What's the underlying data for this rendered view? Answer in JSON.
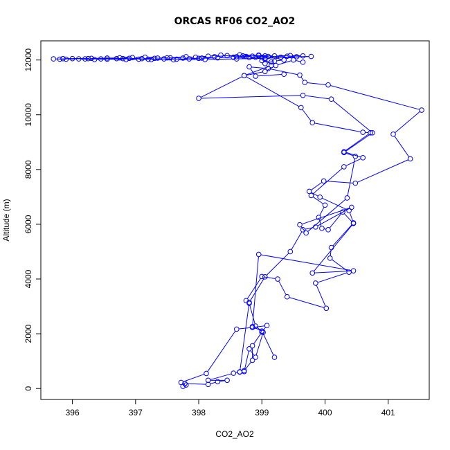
{
  "chart_data": {
    "type": "line",
    "title": "ORCAS RF06 CO2_AO2",
    "xlabel": "CO2_AO2",
    "ylabel": "Altitude (m)",
    "xlim": [
      395.5,
      401.65
    ],
    "ylim": [
      -400,
      12700
    ],
    "x_ticks": [
      396,
      397,
      398,
      399,
      400,
      401
    ],
    "y_ticks": [
      0,
      2000,
      4000,
      6000,
      8000,
      10000,
      12000
    ],
    "grid": false,
    "legend": "none",
    "series": [
      {
        "color": "#0000ff",
        "marker": "open-circle",
        "points": [
          [
            397.75,
            80
          ],
          [
            397.78,
            180
          ],
          [
            398.15,
            150
          ],
          [
            398.3,
            250
          ],
          [
            398.45,
            300
          ],
          [
            398.15,
            300
          ],
          [
            398.55,
            560
          ],
          [
            398.65,
            610
          ],
          [
            398.72,
            620
          ],
          [
            398.8,
            1450
          ],
          [
            398.9,
            1140
          ],
          [
            399.02,
            2050
          ],
          [
            398.9,
            2280
          ],
          [
            398.8,
            3110
          ],
          [
            398.75,
            3210
          ],
          [
            399.0,
            4090
          ],
          [
            399.25,
            4000
          ],
          [
            399.4,
            3350
          ],
          [
            400.02,
            2930
          ],
          [
            399.85,
            3850
          ],
          [
            400.38,
            4250
          ],
          [
            400.08,
            4760
          ],
          [
            400.1,
            5150
          ],
          [
            400.45,
            6050
          ],
          [
            400.38,
            6500
          ],
          [
            399.92,
            6990
          ],
          [
            399.75,
            7200
          ],
          [
            399.98,
            7580
          ],
          [
            400.48,
            7500
          ],
          [
            401.35,
            8390
          ],
          [
            401.08,
            9290
          ],
          [
            401.53,
            10170
          ],
          [
            400.05,
            11090
          ],
          [
            399.68,
            11180
          ],
          [
            399.6,
            11450
          ],
          [
            399.1,
            11690
          ],
          [
            398.8,
            11750
          ],
          [
            398.9,
            11410
          ],
          [
            399.35,
            11480
          ]
        ]
      },
      {
        "color": "#0000ff",
        "marker": "open-circle",
        "points": [
          [
            397.8,
            130
          ],
          [
            397.72,
            220
          ],
          [
            398.12,
            550
          ],
          [
            398.6,
            2170
          ],
          [
            398.85,
            2230
          ],
          [
            399.08,
            2300
          ],
          [
            399.0,
            2060
          ],
          [
            398.85,
            1560
          ],
          [
            398.85,
            1030
          ],
          [
            398.72,
            650
          ],
          [
            398.65,
            600
          ],
          [
            398.8,
            3150
          ],
          [
            399.05,
            4080
          ],
          [
            399.45,
            5000
          ],
          [
            399.65,
            5800
          ],
          [
            399.85,
            5900
          ],
          [
            400.42,
            6620
          ],
          [
            399.6,
            5980
          ],
          [
            399.7,
            5680
          ],
          [
            400.35,
            6960
          ],
          [
            400.48,
            8480
          ],
          [
            400.3,
            8620
          ],
          [
            400.75,
            9340
          ],
          [
            400.1,
            10570
          ],
          [
            399.65,
            10710
          ],
          [
            398.0,
            10600
          ],
          [
            398.72,
            11430
          ],
          [
            399.05,
            11580
          ],
          [
            399.22,
            11800
          ],
          [
            399.5,
            12000
          ],
          [
            399.65,
            11920
          ]
        ]
      },
      {
        "color": "#0000ff",
        "marker": "open-circle",
        "points": [
          [
            399.2,
            1140
          ],
          [
            399.0,
            2100
          ],
          [
            398.85,
            2260
          ],
          [
            398.95,
            4900
          ],
          [
            400.45,
            4300
          ],
          [
            399.8,
            4220
          ],
          [
            400.45,
            6030
          ],
          [
            400.28,
            6450
          ],
          [
            400.05,
            5800
          ],
          [
            399.95,
            5850
          ],
          [
            399.9,
            6250
          ],
          [
            400.0,
            6700
          ],
          [
            399.78,
            7050
          ],
          [
            400.3,
            8100
          ],
          [
            400.6,
            8430
          ],
          [
            400.3,
            8650
          ],
          [
            400.72,
            9340
          ],
          [
            400.6,
            9360
          ],
          [
            399.8,
            9710
          ],
          [
            399.62,
            10260
          ],
          [
            398.72,
            11430
          ],
          [
            399.15,
            11800
          ]
        ]
      },
      {
        "color": "#0000ff",
        "marker": "open-circle",
        "points": [
          [
            395.8,
            12030
          ],
          [
            396.0,
            12050
          ],
          [
            396.2,
            12040
          ],
          [
            396.45,
            12040
          ],
          [
            396.7,
            12050
          ],
          [
            396.9,
            12060
          ],
          [
            397.1,
            12050
          ],
          [
            397.3,
            12060
          ],
          [
            397.5,
            12080
          ],
          [
            397.75,
            12070
          ],
          [
            398.0,
            12060
          ],
          [
            398.3,
            12080
          ],
          [
            398.55,
            12100
          ],
          [
            398.8,
            12090
          ],
          [
            399.05,
            12070
          ],
          [
            399.3,
            12100
          ],
          [
            399.55,
            12120
          ],
          [
            399.78,
            12130
          ],
          [
            399.05,
            12060
          ],
          [
            398.6,
            12040
          ],
          [
            398.1,
            12020
          ],
          [
            397.6,
            12010
          ],
          [
            397.2,
            12030
          ],
          [
            396.8,
            12050
          ],
          [
            396.3,
            12060
          ],
          [
            395.85,
            12050
          ]
        ]
      },
      {
        "color": "#0000ff",
        "marker": "open-circle",
        "points": [
          [
            395.7,
            12040
          ],
          [
            395.9,
            12030
          ],
          [
            396.1,
            12040
          ],
          [
            396.35,
            12020
          ],
          [
            396.55,
            12030
          ],
          [
            396.85,
            12020
          ],
          [
            397.05,
            12030
          ],
          [
            397.25,
            12020
          ],
          [
            397.45,
            12040
          ],
          [
            397.65,
            12030
          ],
          [
            397.85,
            12040
          ],
          [
            398.05,
            12070
          ],
          [
            398.25,
            12120
          ],
          [
            398.45,
            12160
          ],
          [
            398.7,
            12150
          ],
          [
            398.95,
            12180
          ],
          [
            399.2,
            12150
          ],
          [
            399.45,
            12160
          ],
          [
            399.65,
            12150
          ],
          [
            399.4,
            12140
          ],
          [
            399.1,
            12130
          ],
          [
            398.85,
            12140
          ],
          [
            398.6,
            12120
          ],
          [
            398.35,
            12180
          ],
          [
            398.15,
            12140
          ],
          [
            397.95,
            12100
          ],
          [
            397.8,
            12120
          ],
          [
            397.55,
            12080
          ],
          [
            397.35,
            12070
          ],
          [
            397.15,
            12100
          ],
          [
            396.95,
            12090
          ],
          [
            396.75,
            12080
          ],
          [
            396.55,
            12070
          ],
          [
            396.25,
            12050
          ]
        ]
      },
      {
        "color": "#0000ff",
        "marker": "open-circle",
        "points": [
          [
            399.0,
            12100
          ],
          [
            399.05,
            12020
          ],
          [
            399.0,
            11980
          ],
          [
            399.15,
            11930
          ],
          [
            399.05,
            11870
          ],
          [
            399.2,
            11960
          ],
          [
            399.35,
            12000
          ],
          [
            399.05,
            12150
          ],
          [
            398.65,
            12190
          ],
          [
            398.75,
            12130
          ],
          [
            398.9,
            12100
          ],
          [
            398.95,
            12160
          ]
        ]
      }
    ]
  }
}
